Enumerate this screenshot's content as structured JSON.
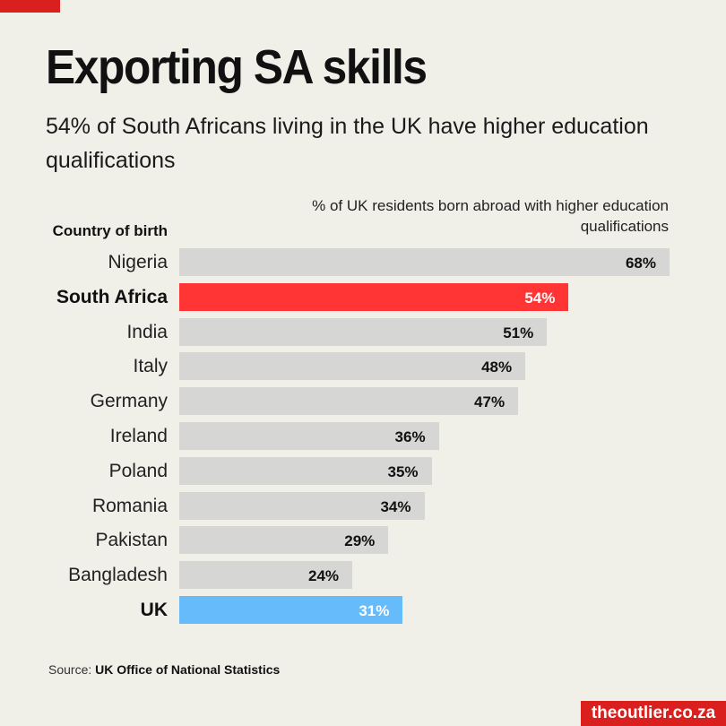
{
  "header": {
    "title": "Exporting SA skills",
    "subtitle": "54% of South Africans living in the UK have higher education qualifications"
  },
  "chart_data": {
    "type": "bar",
    "orientation": "horizontal",
    "title": "Exporting SA skills",
    "subtitle": "54% of South Africans living in the UK have higher education qualifications",
    "xlabel": "% of UK residents born abroad with higher education qualifications",
    "ylabel": "Country of birth",
    "categories": [
      "Nigeria",
      "South Africa",
      "India",
      "Italy",
      "Germany",
      "Ireland",
      "Poland",
      "Romania",
      "Pakistan",
      "Bangladesh",
      "UK"
    ],
    "values": [
      68,
      54,
      51,
      48,
      47,
      36,
      35,
      34,
      29,
      24,
      31
    ],
    "value_labels": [
      "68%",
      "54%",
      "51%",
      "48%",
      "47%",
      "36%",
      "35%",
      "34%",
      "29%",
      "24%",
      "31%"
    ],
    "highlight": {
      "South Africa": "#ff3535",
      "UK": "#66bcfb"
    },
    "default_color": "#d6d6d4",
    "xlim": [
      0,
      68
    ],
    "grid": false
  },
  "colors": {
    "accent": "#d9201f",
    "highlight_sa": "#ff3535",
    "highlight_uk": "#66bcfb",
    "bar": "#d6d6d4",
    "background": "#f0efe8"
  },
  "footer": {
    "source_prefix": "Source:",
    "source_name": "UK Office of National Statistics",
    "brand": "theoutlier.co.za"
  }
}
